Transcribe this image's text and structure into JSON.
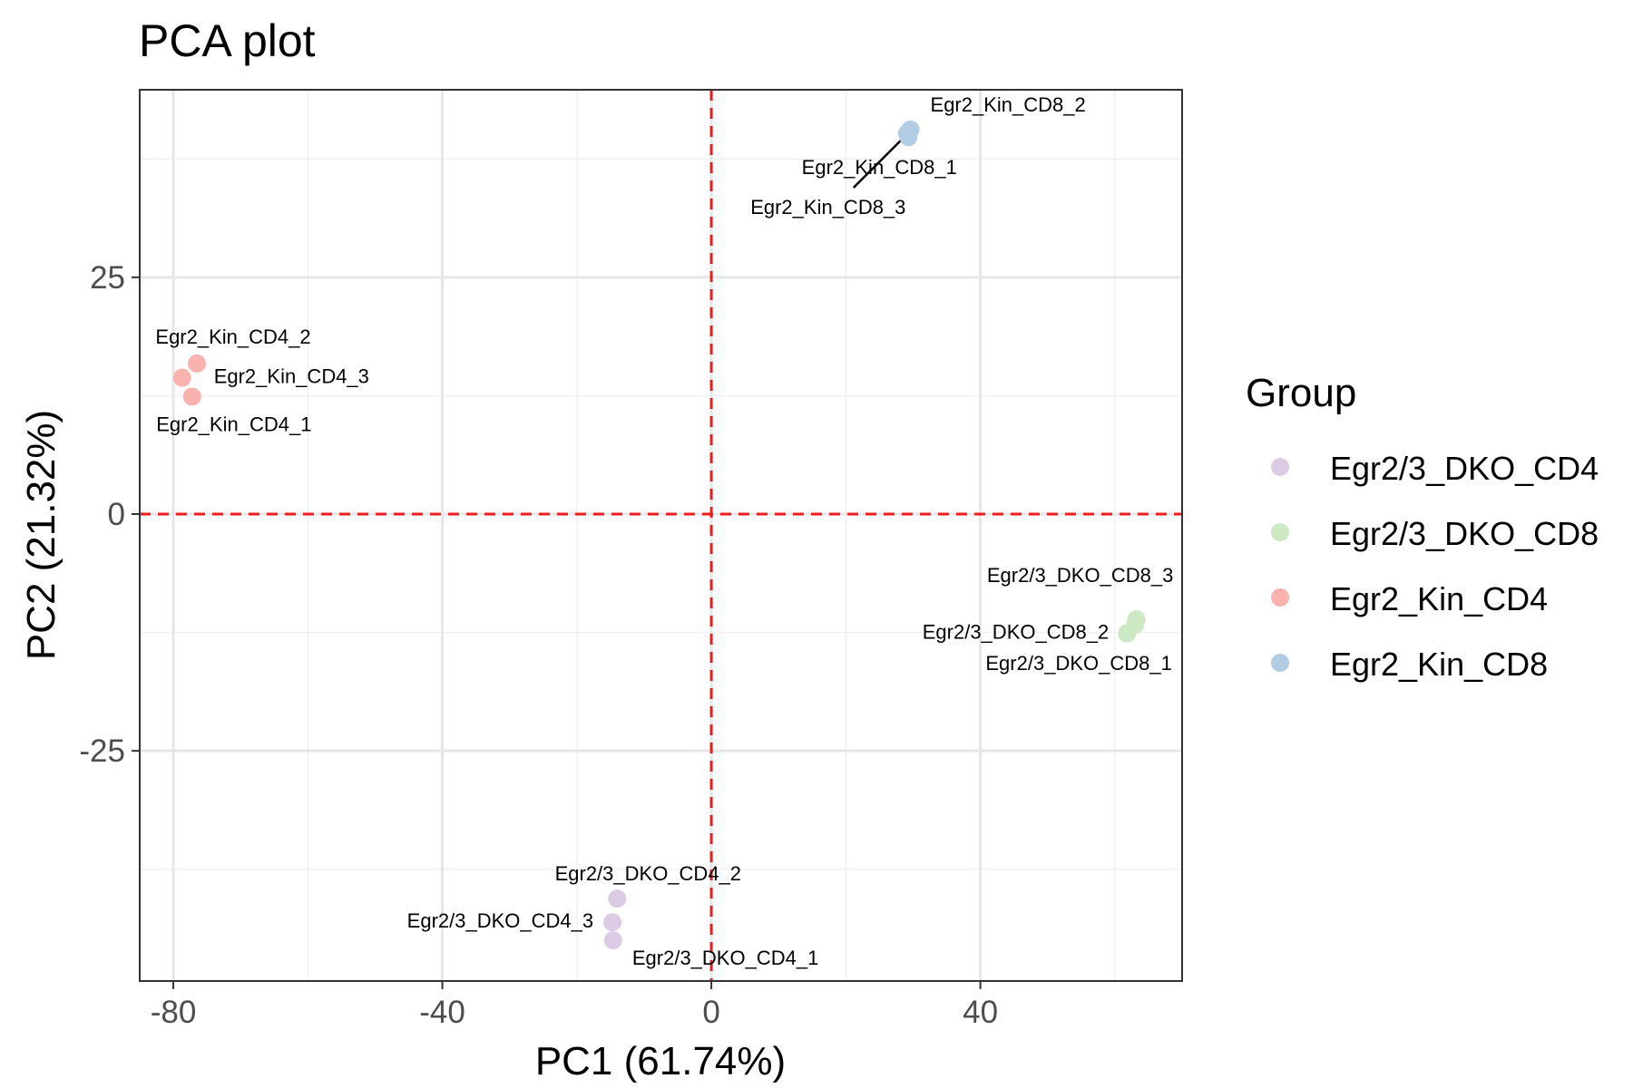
{
  "chart_data": {
    "type": "scatter",
    "title": "PCA plot",
    "xlabel": "PC1 (61.74%)",
    "ylabel": "PC2 (21.32%)",
    "xlim": [
      -85,
      70
    ],
    "ylim": [
      -49.3,
      44.8
    ],
    "x_ticks": [
      -80,
      -40,
      0,
      40
    ],
    "x_tick_labels": [
      "-80",
      "-40",
      "0",
      "40"
    ],
    "y_ticks": [
      -25,
      0,
      25
    ],
    "y_tick_labels": [
      "-25",
      "0",
      "25"
    ],
    "grid": true,
    "reference_lines": {
      "x": 0,
      "y": 0,
      "color": "#ee1c1c",
      "style": "dashed"
    },
    "legend": {
      "title": "Group",
      "position": "right"
    },
    "series": [
      {
        "name": "Egr2/3_DKO_CD4",
        "color": "#dccbe4",
        "points": [
          {
            "x": -14.6,
            "y": -45.0,
            "label": "Egr2/3_DKO_CD4_1"
          },
          {
            "x": -14.0,
            "y": -40.6,
            "label": "Egr2/3_DKO_CD4_2"
          },
          {
            "x": -14.7,
            "y": -43.1,
            "label": "Egr2/3_DKO_CD4_3"
          }
        ]
      },
      {
        "name": "Egr2/3_DKO_CD8",
        "color": "#cde9c4",
        "points": [
          {
            "x": 63.0,
            "y": -11.7,
            "label": "Egr2/3_DKO_CD8_1"
          },
          {
            "x": 61.8,
            "y": -12.6,
            "label": "Egr2/3_DKO_CD8_2"
          },
          {
            "x": 63.2,
            "y": -11.1,
            "label": "Egr2/3_DKO_CD8_3"
          }
        ]
      },
      {
        "name": "Egr2_Kin_CD4",
        "color": "#f9b2ad",
        "points": [
          {
            "x": -77.2,
            "y": 12.4,
            "label": "Egr2_Kin_CD4_1"
          },
          {
            "x": -76.5,
            "y": 15.9,
            "label": "Egr2_Kin_CD4_2"
          },
          {
            "x": -78.7,
            "y": 14.4,
            "label": "Egr2_Kin_CD4_3"
          }
        ]
      },
      {
        "name": "Egr2_Kin_CD8",
        "color": "#b2cde3",
        "points": [
          {
            "x": 29.3,
            "y": 39.8,
            "label": "Egr2_Kin_CD8_1"
          },
          {
            "x": 29.6,
            "y": 40.6,
            "label": "Egr2_Kin_CD8_2"
          },
          {
            "x": 29.1,
            "y": 40.2,
            "label": "Egr2_Kin_CD8_3"
          }
        ]
      }
    ]
  }
}
